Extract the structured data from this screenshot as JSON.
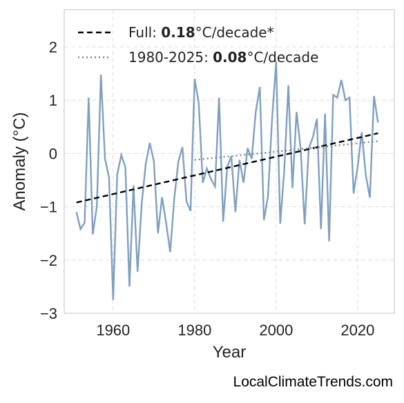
{
  "chart_data": {
    "type": "line",
    "xlabel": "Year",
    "ylabel": "Anomaly (°C)",
    "xlim": [
      1948,
      2029
    ],
    "ylim": [
      -3,
      2.7
    ],
    "xticks": [
      1960,
      1980,
      2000,
      2020
    ],
    "yticks": [
      {
        "value": -3,
        "label": "−3"
      },
      {
        "value": -2,
        "label": "−2"
      },
      {
        "value": -1,
        "label": "−1"
      },
      0,
      1,
      2
    ],
    "grid": true,
    "legend": "upper left",
    "series": [
      {
        "color": "#7f9fc1",
        "x": [
          1951,
          1952,
          1953,
          1954,
          1955,
          1956,
          1957,
          1958,
          1959,
          1960,
          1961,
          1962,
          1963,
          1964,
          1965,
          1966,
          1967,
          1968,
          1969,
          1970,
          1971,
          1972,
          1973,
          1974,
          1975,
          1976,
          1977,
          1978,
          1979,
          1980,
          1981,
          1982,
          1983,
          1984,
          1985,
          1986,
          1987,
          1988,
          1989,
          1990,
          1991,
          1992,
          1993,
          1994,
          1995,
          1996,
          1997,
          1998,
          1999,
          2000,
          2001,
          2002,
          2003,
          2004,
          2005,
          2006,
          2007,
          2008,
          2009,
          2010,
          2011,
          2012,
          2013,
          2014,
          2015,
          2016,
          2017,
          2018,
          2019,
          2020,
          2021,
          2022,
          2023,
          2024,
          2025
        ],
        "values": [
          -1.1,
          -1.42,
          -1.3,
          1.05,
          -1.52,
          -1.0,
          1.48,
          -0.1,
          -0.45,
          -2.75,
          -0.4,
          -0.03,
          -0.25,
          -2.5,
          -0.6,
          -2.22,
          -0.95,
          -0.2,
          0.2,
          -0.15,
          -1.5,
          -0.82,
          -1.3,
          -1.85,
          -0.85,
          -0.15,
          0.12,
          -0.9,
          -1.08,
          1.4,
          0.95,
          -0.55,
          -0.28,
          -0.48,
          -0.62,
          1.05,
          -1.28,
          -0.25,
          -0.05,
          -1.1,
          -0.12,
          -0.55,
          0.1,
          -0.1,
          0.78,
          1.25,
          -1.25,
          -0.8,
          0.65,
          1.72,
          -1.32,
          -0.3,
          1.28,
          -0.65,
          0.78,
          0.1,
          -1.33,
          0.1,
          0.3,
          0.65,
          -1.42,
          0.75,
          -1.65,
          1.1,
          1.05,
          1.38,
          1.0,
          1.05,
          -0.75,
          -0.25,
          0.4,
          -0.4,
          -0.83,
          1.08,
          0.58
        ]
      },
      {
        "name_parts": [
          "Full: ",
          "0.18",
          "°C/decade*"
        ],
        "color": "#000000",
        "dash": "dashed",
        "x": [
          1951,
          2025
        ],
        "values": [
          -0.92,
          0.38
        ]
      },
      {
        "name_parts": [
          "1980-2025: ",
          "0.08",
          "°C/decade"
        ],
        "color": "#808080",
        "dash": "dotted",
        "x": [
          1980,
          2025
        ],
        "values": [
          -0.12,
          0.23
        ]
      }
    ],
    "watermark": "LocalClimateTrends.com"
  }
}
